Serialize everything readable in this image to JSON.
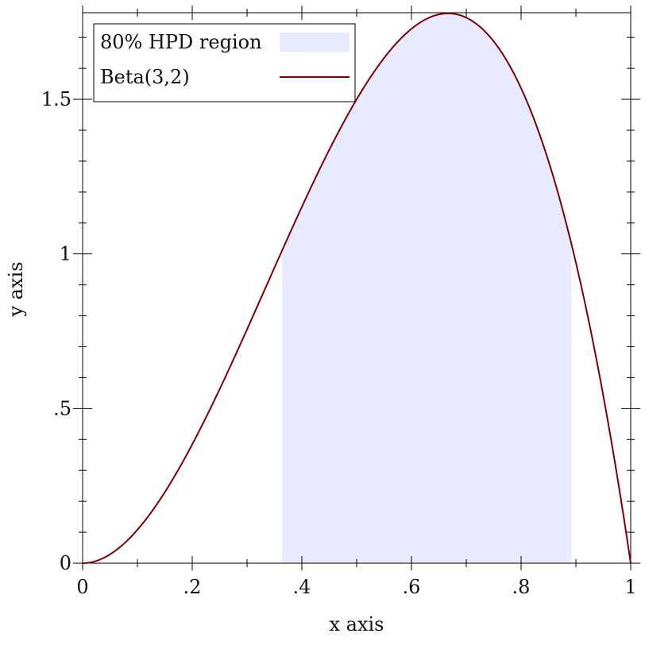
{
  "chart_data": {
    "type": "line",
    "xlabel": "x axis",
    "ylabel": "y axis",
    "xlim": [
      0,
      1
    ],
    "ylim": [
      0,
      1.78
    ],
    "x_ticks": [
      {
        "value": 0,
        "label": "0"
      },
      {
        "value": 0.2,
        "label": ".2"
      },
      {
        "value": 0.4,
        "label": ".4"
      },
      {
        "value": 0.6,
        "label": ".6"
      },
      {
        "value": 0.8,
        "label": ".8"
      },
      {
        "value": 1,
        "label": "1"
      }
    ],
    "y_ticks": [
      {
        "value": 0,
        "label": "0"
      },
      {
        "value": 0.5,
        "label": ".5"
      },
      {
        "value": 1,
        "label": "1"
      },
      {
        "value": 1.5,
        "label": "1.5"
      }
    ],
    "grid": false,
    "legend": {
      "placement": "top-left",
      "entries": [
        {
          "label": "80% HPD region",
          "kind": "area",
          "color": "#e8ebff"
        },
        {
          "label": "Beta(3,2)",
          "kind": "line",
          "color": "#7f0000"
        }
      ]
    },
    "series": [
      {
        "name": "Beta(3,2)",
        "kind": "line",
        "color": "#7f0000",
        "x": [
          0,
          0.05,
          0.1,
          0.15,
          0.2,
          0.25,
          0.3,
          0.35,
          0.4,
          0.45,
          0.5,
          0.55,
          0.6,
          0.65,
          0.667,
          0.7,
          0.75,
          0.8,
          0.85,
          0.9,
          0.95,
          1
        ],
        "y": [
          0,
          0.0285,
          0.108,
          0.2295,
          0.384,
          0.5625,
          0.756,
          0.9555,
          1.152,
          1.3365,
          1.5,
          1.6335,
          1.728,
          1.7745,
          1.7778,
          1.764,
          1.6875,
          1.536,
          1.3005,
          0.972,
          0.5415,
          0
        ]
      },
      {
        "name": "80% HPD region",
        "kind": "area",
        "color": "#e8ebff",
        "x_start": 0.364,
        "x_end": 0.892,
        "y_cap": 1.0
      }
    ]
  }
}
